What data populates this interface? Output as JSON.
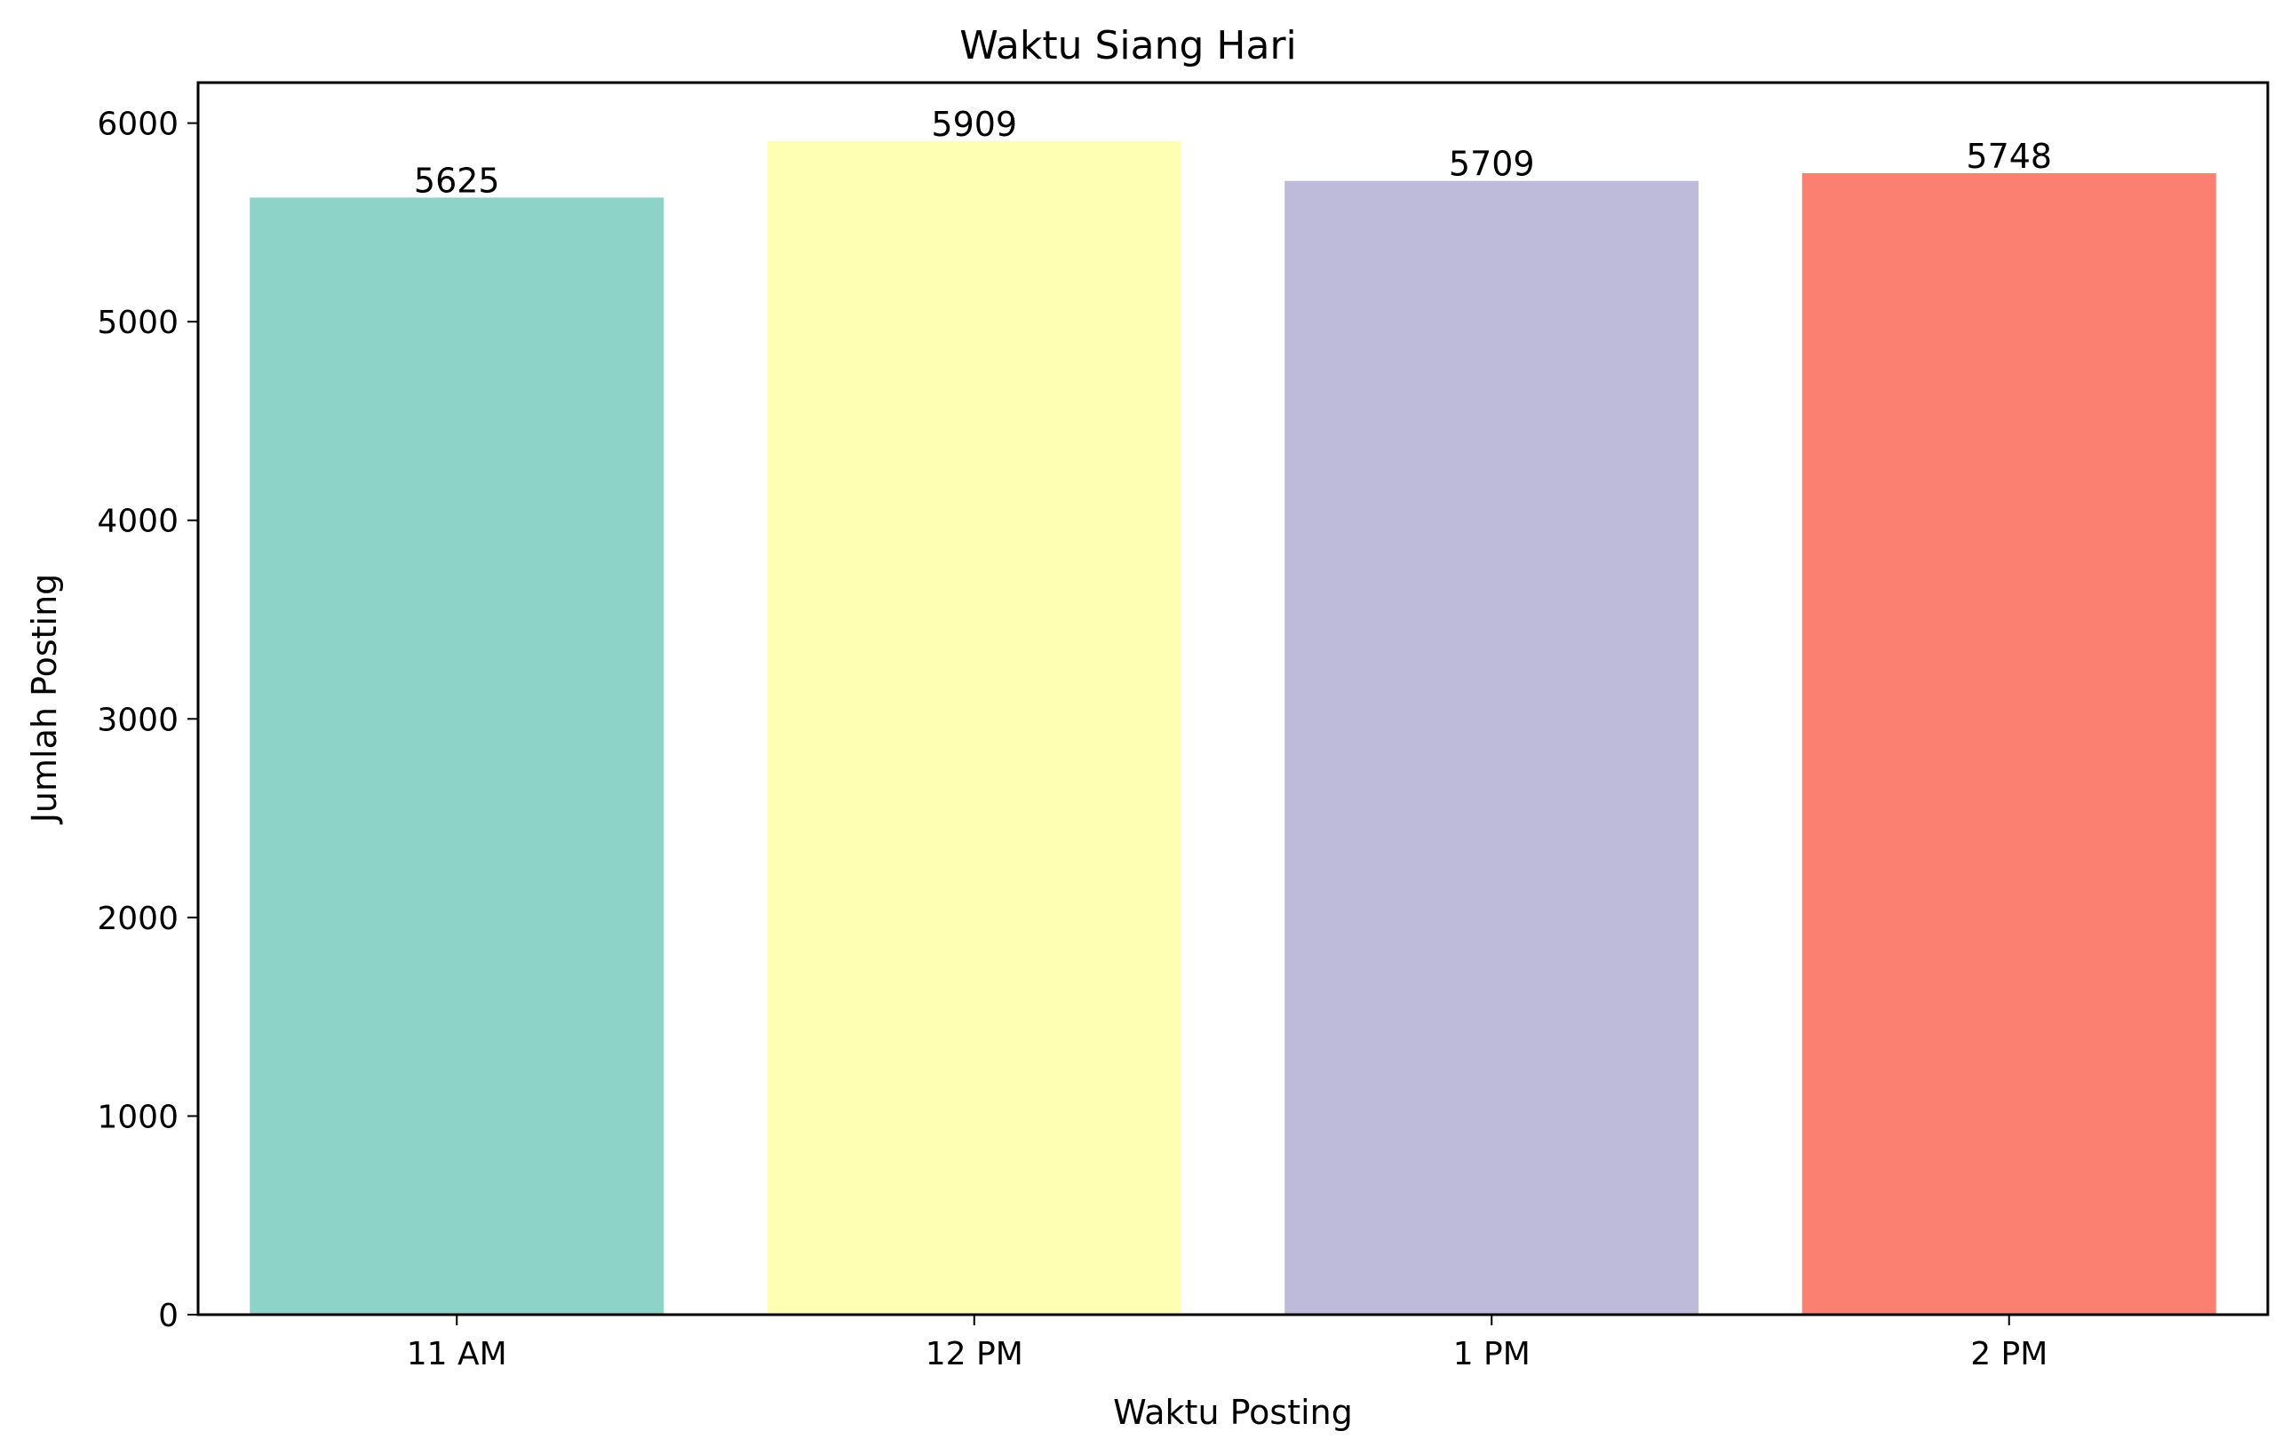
{
  "chart_data": {
    "type": "bar",
    "title": "Waktu Siang Hari",
    "xlabel": "Waktu Posting",
    "ylabel": "Jumlah Posting",
    "categories": [
      "11 AM",
      "12 PM",
      "1 PM",
      "2 PM"
    ],
    "values": [
      5625,
      5909,
      5709,
      5748
    ],
    "data_labels": [
      "5625",
      "5909",
      "5709",
      "5748"
    ],
    "colors": [
      "#8dd3c7",
      "#ffffb3",
      "#bebada",
      "#fb8072"
    ],
    "ylim": [
      0,
      6204
    ],
    "yticks": [
      0,
      1000,
      2000,
      3000,
      4000,
      5000,
      6000
    ],
    "ytick_labels": [
      "0",
      "1000",
      "2000",
      "3000",
      "4000",
      "5000",
      "6000"
    ],
    "grid": false,
    "legend": "none"
  }
}
